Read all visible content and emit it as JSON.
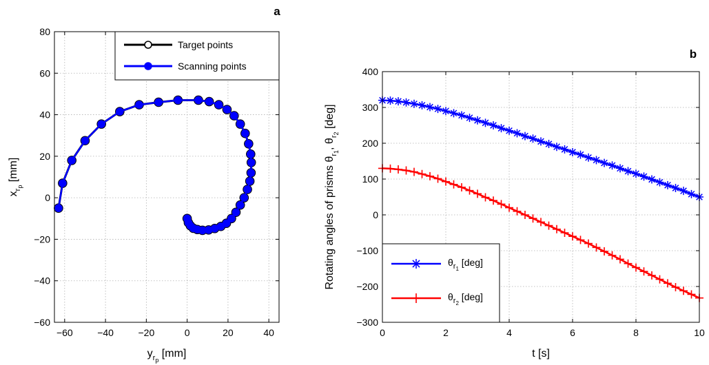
{
  "figure": {
    "panel_a_label": "a",
    "panel_b_label": "b"
  },
  "chart_data": [
    {
      "type": "line",
      "panel": "a",
      "xlabel_base": "y",
      "xlabel_sub1": "r",
      "xlabel_sub2": "p",
      "xlabel_unit": " [mm]",
      "ylabel_base": "x",
      "ylabel_sub1": "r",
      "ylabel_sub2": "p",
      "ylabel_unit": " [mm]",
      "xlim": [
        -65,
        45
      ],
      "ylim": [
        -60,
        80
      ],
      "xticks": [
        -60,
        -40,
        -20,
        0,
        20,
        40
      ],
      "yticks": [
        -60,
        -40,
        -20,
        0,
        20,
        40,
        60,
        80
      ],
      "grid": true,
      "legend_position": "top-right",
      "series": [
        {
          "name": "Target points",
          "color": "#000000",
          "marker": "open-circle",
          "x": [
            0,
            0.6,
            1.6,
            3,
            5,
            7.5,
            10.5,
            13.5,
            16.5,
            19.2,
            21.7,
            23.9,
            26,
            27.9,
            29.5,
            30.7,
            31.3,
            31.4,
            31.1,
            30.1,
            28.4,
            26,
            23,
            19.5,
            15.5,
            10.8,
            5.5,
            -4.5,
            -14,
            -23.5,
            -33,
            -42,
            -50,
            -56.5,
            -61,
            -63
          ],
          "y": [
            -10,
            -12,
            -13.5,
            -14.7,
            -15.3,
            -15.7,
            -15.5,
            -14.8,
            -13.8,
            -12.3,
            -10,
            -7,
            -3.5,
            0,
            4,
            8,
            12,
            17,
            21,
            26,
            31,
            35.5,
            39.5,
            42.5,
            44.8,
            46.3,
            47,
            47,
            46,
            44.8,
            41.5,
            35.5,
            27.5,
            18,
            7,
            -5
          ]
        },
        {
          "name": "Scanning points",
          "color": "#0000ff",
          "marker": "filled-circle",
          "x": [
            0,
            0.6,
            1.6,
            3,
            5,
            7.5,
            10.5,
            13.5,
            16.5,
            19.2,
            21.7,
            23.9,
            26,
            27.9,
            29.5,
            30.7,
            31.3,
            31.4,
            31.1,
            30.1,
            28.4,
            26,
            23,
            19.5,
            15.5,
            10.8,
            5.5,
            -4.5,
            -14,
            -23.5,
            -33,
            -42,
            -50,
            -56.5,
            -61,
            -63
          ],
          "y": [
            -10,
            -12,
            -13.5,
            -14.7,
            -15.3,
            -15.7,
            -15.5,
            -14.8,
            -13.8,
            -12.3,
            -10,
            -7,
            -3.5,
            0,
            4,
            8,
            12,
            17,
            21,
            26,
            31,
            35.5,
            39.5,
            42.5,
            44.8,
            46.3,
            47,
            47,
            46,
            44.8,
            41.5,
            35.5,
            27.5,
            18,
            7,
            -5
          ]
        }
      ]
    },
    {
      "type": "line",
      "panel": "b",
      "xlabel": "t [s]",
      "ylabel_prefix": "Rotating angles of prisms ",
      "ylabel_unit": " [deg]",
      "xlim": [
        0,
        10
      ],
      "ylim": [
        -300,
        400
      ],
      "xticks": [
        0,
        2,
        4,
        6,
        8,
        10
      ],
      "yticks": [
        -300,
        -200,
        -100,
        0,
        100,
        200,
        300,
        400
      ],
      "grid": true,
      "legend_position": "bottom-left",
      "series": [
        {
          "name_base": "θ",
          "name_sub1": "r",
          "name_sub2": "1",
          "name_unit": " [deg]",
          "color": "#0000ff",
          "marker": "asterisk",
          "x": [
            0,
            0.25,
            0.5,
            0.75,
            1,
            1.25,
            1.5,
            1.75,
            2,
            2.25,
            2.5,
            2.75,
            3,
            3.25,
            3.5,
            3.75,
            4,
            4.25,
            4.5,
            4.75,
            5,
            5.25,
            5.5,
            5.75,
            6,
            6.25,
            6.5,
            6.75,
            7,
            7.25,
            7.5,
            7.75,
            8,
            8.25,
            8.5,
            8.75,
            9,
            9.25,
            9.5,
            9.75,
            10
          ],
          "y": [
            320,
            319,
            317,
            314,
            310,
            306,
            301,
            296,
            290,
            284,
            278,
            271,
            264,
            257,
            250,
            242,
            235,
            228,
            220,
            213,
            205,
            198,
            190,
            183,
            175,
            168,
            160,
            153,
            145,
            138,
            130,
            122,
            115,
            107,
            99,
            91,
            83,
            75,
            67,
            58,
            50
          ]
        },
        {
          "name_base": "θ",
          "name_sub1": "r",
          "name_sub2": "2",
          "name_unit": " [deg]",
          "color": "#ff0000",
          "marker": "plus",
          "x": [
            0,
            0.25,
            0.5,
            0.75,
            1,
            1.25,
            1.5,
            1.75,
            2,
            2.25,
            2.5,
            2.75,
            3,
            3.25,
            3.5,
            3.75,
            4,
            4.25,
            4.5,
            4.75,
            5,
            5.25,
            5.5,
            5.75,
            6,
            6.25,
            6.5,
            6.75,
            7,
            7.25,
            7.5,
            7.75,
            8,
            8.25,
            8.5,
            8.75,
            9,
            9.25,
            9.5,
            9.75,
            10
          ],
          "y": [
            130,
            129,
            127,
            124,
            120,
            114,
            108,
            101,
            93,
            85,
            77,
            68,
            59,
            49,
            40,
            30,
            20,
            10,
            0,
            -10,
            -20,
            -30,
            -40,
            -50,
            -60,
            -70,
            -80,
            -91,
            -102,
            -113,
            -124,
            -136,
            -147,
            -158,
            -169,
            -180,
            -191,
            -202,
            -212,
            -222,
            -232
          ]
        }
      ]
    }
  ]
}
